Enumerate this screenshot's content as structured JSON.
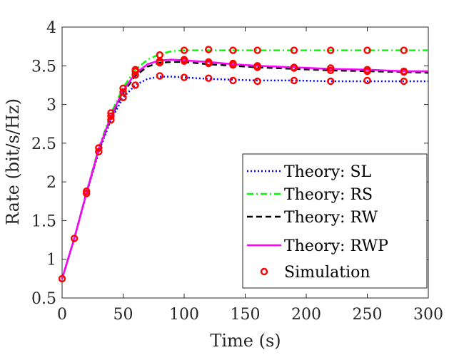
{
  "chart_data": {
    "type": "line",
    "title": "",
    "xlabel": "Time (s)",
    "ylabel": "Rate (bit/s/Hz)",
    "xlim": [
      0,
      300
    ],
    "ylim": [
      0.5,
      4
    ],
    "xticks": [
      0,
      50,
      100,
      150,
      200,
      250,
      300
    ],
    "xtick_labels": [
      "0",
      "50",
      "100",
      "150",
      "200",
      "250",
      "300"
    ],
    "yticks": [
      0.5,
      1,
      1.5,
      2,
      2.5,
      3,
      3.5,
      4
    ],
    "ytick_labels": [
      "0.5",
      "1",
      "1.5",
      "2",
      "2.5",
      "3",
      "3.5",
      "4"
    ],
    "grid": false,
    "legend_position": "bottom-right",
    "series": [
      {
        "name": "Theory: SL",
        "color": "#0000ff",
        "dash": "dotted",
        "x": [
          0,
          10,
          20,
          30,
          40,
          50,
          60,
          70,
          80,
          90,
          100,
          120,
          140,
          160,
          190,
          220,
          250,
          280,
          300
        ],
        "y": [
          0.75,
          1.27,
          1.85,
          2.39,
          2.8,
          3.09,
          3.25,
          3.33,
          3.36,
          3.36,
          3.35,
          3.33,
          3.32,
          3.31,
          3.31,
          3.3,
          3.3,
          3.3,
          3.3
        ]
      },
      {
        "name": "Theory: RS",
        "color": "#00ff00",
        "dash": "dashdot",
        "x": [
          0,
          10,
          20,
          30,
          40,
          50,
          60,
          70,
          80,
          90,
          100,
          120,
          140,
          160,
          190,
          220,
          250,
          280,
          300
        ],
        "y": [
          0.75,
          1.27,
          1.87,
          2.44,
          2.88,
          3.22,
          3.45,
          3.58,
          3.65,
          3.69,
          3.7,
          3.7,
          3.7,
          3.7,
          3.7,
          3.7,
          3.7,
          3.7,
          3.7
        ]
      },
      {
        "name": "Theory: RW",
        "color": "#000000",
        "dash": "dashed",
        "x": [
          0,
          10,
          20,
          30,
          40,
          50,
          60,
          70,
          80,
          90,
          100,
          120,
          140,
          160,
          190,
          220,
          250,
          280,
          300
        ],
        "y": [
          0.75,
          1.27,
          1.86,
          2.41,
          2.83,
          3.15,
          3.37,
          3.49,
          3.54,
          3.55,
          3.55,
          3.52,
          3.5,
          3.48,
          3.46,
          3.44,
          3.43,
          3.42,
          3.41
        ]
      },
      {
        "name": "Theory: RWP",
        "color": "#ff00ff",
        "dash": "solid",
        "x": [
          0,
          10,
          20,
          30,
          40,
          50,
          60,
          70,
          80,
          90,
          100,
          120,
          140,
          160,
          190,
          220,
          250,
          280,
          300
        ],
        "y": [
          0.75,
          1.27,
          1.86,
          2.42,
          2.85,
          3.18,
          3.4,
          3.52,
          3.57,
          3.58,
          3.57,
          3.55,
          3.52,
          3.5,
          3.48,
          3.46,
          3.45,
          3.43,
          3.43
        ]
      }
    ],
    "simulation": {
      "name": "Simulation",
      "color": "#ff0000",
      "points": [
        [
          0,
          0.75
        ],
        [
          10,
          1.27
        ],
        [
          20,
          1.85
        ],
        [
          20,
          1.88
        ],
        [
          30,
          2.39
        ],
        [
          30,
          2.44
        ],
        [
          40,
          2.8
        ],
        [
          40,
          2.85
        ],
        [
          40,
          2.89
        ],
        [
          50,
          3.09
        ],
        [
          50,
          3.16
        ],
        [
          50,
          3.21
        ],
        [
          60,
          3.25
        ],
        [
          60,
          3.38
        ],
        [
          60,
          3.43
        ],
        [
          60,
          3.45
        ],
        [
          80,
          3.37
        ],
        [
          80,
          3.54
        ],
        [
          80,
          3.56
        ],
        [
          80,
          3.64
        ],
        [
          100,
          3.35
        ],
        [
          100,
          3.56
        ],
        [
          100,
          3.58
        ],
        [
          100,
          3.7
        ],
        [
          120,
          3.34
        ],
        [
          120,
          3.53
        ],
        [
          120,
          3.55
        ],
        [
          120,
          3.71
        ],
        [
          140,
          3.31
        ],
        [
          140,
          3.51
        ],
        [
          140,
          3.53
        ],
        [
          140,
          3.7
        ],
        [
          160,
          3.3
        ],
        [
          160,
          3.48
        ],
        [
          160,
          3.5
        ],
        [
          160,
          3.7
        ],
        [
          190,
          3.31
        ],
        [
          190,
          3.47
        ],
        [
          190,
          3.48
        ],
        [
          190,
          3.7
        ],
        [
          220,
          3.3
        ],
        [
          220,
          3.44
        ],
        [
          220,
          3.47
        ],
        [
          220,
          3.7
        ],
        [
          250,
          3.31
        ],
        [
          250,
          3.43
        ],
        [
          250,
          3.45
        ],
        [
          250,
          3.7
        ],
        [
          280,
          3.3
        ],
        [
          280,
          3.42
        ],
        [
          280,
          3.43
        ],
        [
          280,
          3.7
        ]
      ]
    },
    "legend": [
      "Theory: SL",
      "Theory: RS",
      "Theory: RW",
      "Theory: RWP",
      "Simulation"
    ]
  }
}
